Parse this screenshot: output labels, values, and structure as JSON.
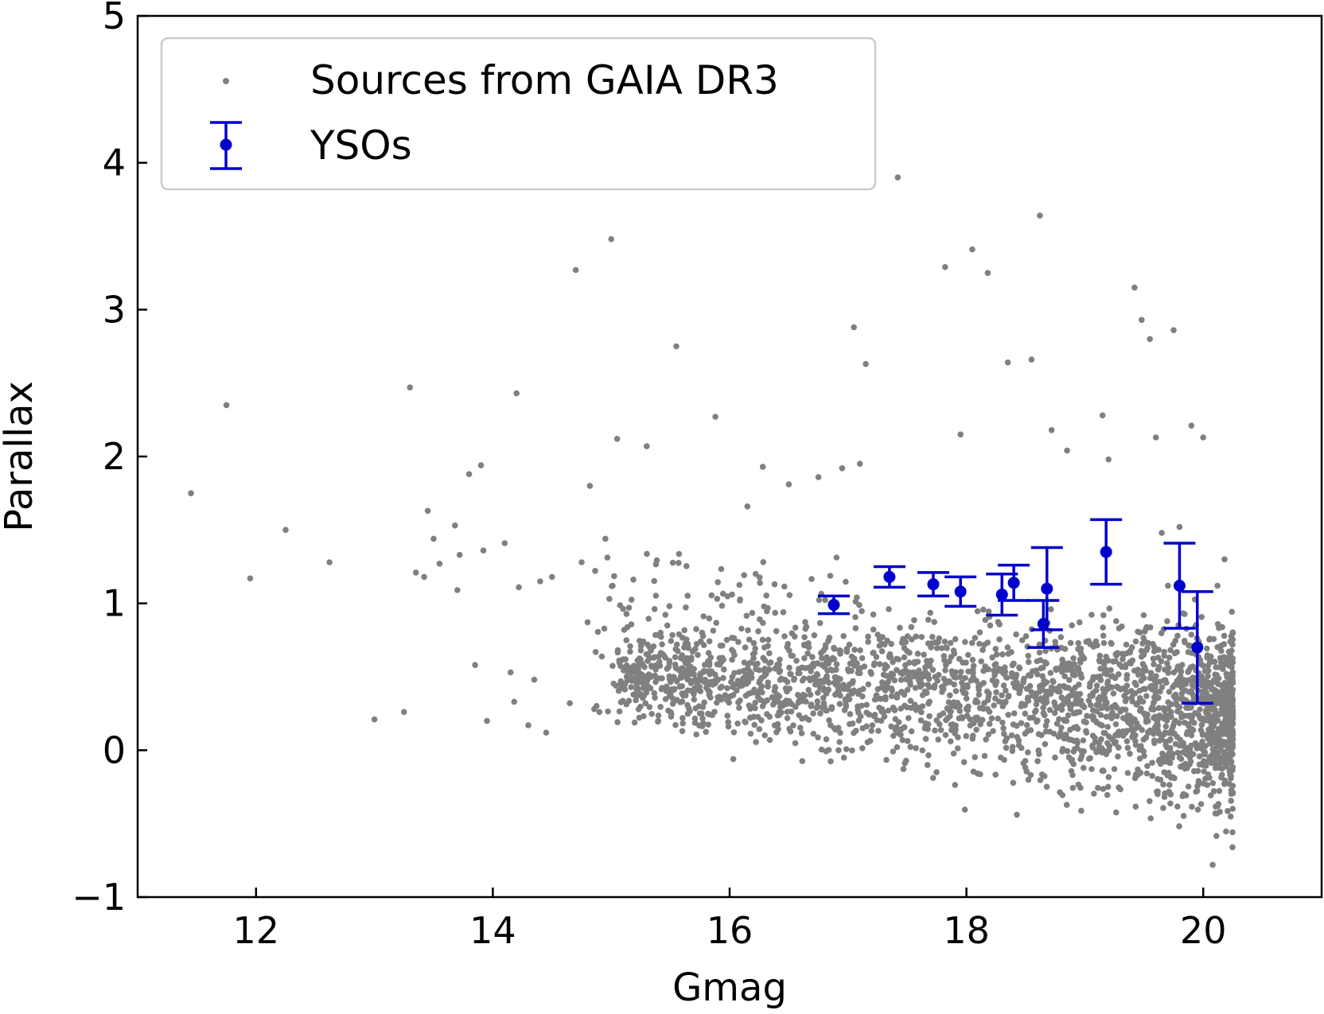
{
  "chart_data": {
    "type": "scatter",
    "xlabel": "Gmag",
    "ylabel": "Parallax",
    "xlim": [
      11.0,
      21.0
    ],
    "ylim": [
      -1,
      5
    ],
    "xticks": [
      12,
      14,
      16,
      18,
      20
    ],
    "xtick_labels": [
      "12",
      "14",
      "16",
      "18",
      "20"
    ],
    "yticks": [
      -1,
      0,
      1,
      2,
      3,
      4,
      5
    ],
    "ytick_labels": [
      "−1",
      "0",
      "1",
      "2",
      "3",
      "4",
      "5"
    ],
    "legend": {
      "location": "top-left",
      "entries": [
        "Sources from GAIA DR3",
        "YSOs"
      ]
    },
    "colors": {
      "gaia": "#808080",
      "yso": "#0000cc",
      "axis": "#000000"
    },
    "series": [
      {
        "name": "Sources from GAIA DR3",
        "marker": "dot",
        "x": [
          11.45,
          11.75,
          11.95,
          12.25,
          12.62,
          13.0,
          13.25,
          13.3,
          13.35,
          13.42,
          13.45,
          13.5,
          13.55,
          13.68,
          13.7,
          13.72,
          13.8,
          13.85,
          13.9,
          13.92,
          13.95,
          14.1,
          14.15,
          14.18,
          14.2,
          14.22,
          14.3,
          14.35,
          14.4,
          14.45,
          14.5,
          14.65,
          14.7,
          14.75,
          14.82,
          14.9,
          14.95,
          15.0,
          15.05,
          15.15,
          15.25,
          15.3,
          15.55,
          15.6,
          15.88,
          16.02,
          16.15,
          16.28,
          16.38,
          16.5,
          16.75,
          16.95,
          17.05,
          17.1,
          17.15,
          17.42,
          17.82,
          17.95,
          18.05,
          18.18,
          18.2,
          18.35,
          18.55,
          18.62,
          18.65,
          18.72,
          18.85,
          19.15,
          19.2,
          19.25,
          19.42,
          19.48,
          19.55,
          19.6,
          19.65,
          19.75,
          19.8,
          19.9,
          19.95,
          20.0,
          20.05,
          20.08,
          20.12,
          20.15,
          20.18,
          20.2
        ],
        "y": [
          1.75,
          2.35,
          1.17,
          1.5,
          1.28,
          0.21,
          0.26,
          2.47,
          1.21,
          1.18,
          1.63,
          1.44,
          1.27,
          1.53,
          1.09,
          1.33,
          1.88,
          0.58,
          1.94,
          1.36,
          0.2,
          1.41,
          0.53,
          0.33,
          2.43,
          1.11,
          0.17,
          0.48,
          1.15,
          0.12,
          1.18,
          0.32,
          3.27,
          1.28,
          1.8,
          0.26,
          1.44,
          3.48,
          2.12,
          0.97,
          0.68,
          2.07,
          2.75,
          0.13,
          2.27,
          1.06,
          1.66,
          1.93,
          1.13,
          1.81,
          1.86,
          1.92,
          2.88,
          1.95,
          2.63,
          3.9,
          3.29,
          2.15,
          3.41,
          3.25,
          0.85,
          2.64,
          2.66,
          3.64,
          0.33,
          2.18,
          2.04,
          2.28,
          1.98,
          0.05,
          3.15,
          2.93,
          2.8,
          2.13,
          1.48,
          2.86,
          1.52,
          2.21,
          0.45,
          2.13,
          0.2,
          -0.78,
          1.12,
          0.6,
          1.3,
          0.15
        ]
      },
      {
        "name": "YSOs",
        "marker": "errorbar",
        "x": [
          16.88,
          17.35,
          17.72,
          17.95,
          18.3,
          18.4,
          18.65,
          18.68,
          19.18,
          19.8,
          19.95
        ],
        "y": [
          0.99,
          1.18,
          1.13,
          1.08,
          1.06,
          1.14,
          0.86,
          1.1,
          1.35,
          1.12,
          0.7
        ],
        "yerr": [
          0.06,
          0.07,
          0.08,
          0.1,
          0.14,
          0.12,
          0.16,
          0.28,
          0.22,
          0.29,
          0.38
        ]
      }
    ]
  }
}
